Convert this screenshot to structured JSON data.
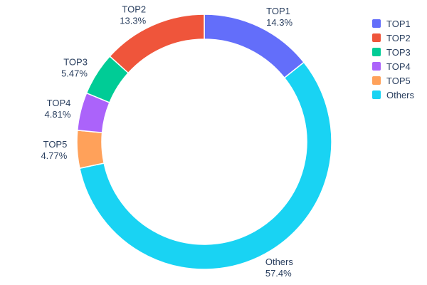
{
  "page": {
    "background": "#ffffff",
    "text_color": "#2a3f5f"
  },
  "chart_data": {
    "type": "pie",
    "subtype": "donut",
    "title": "",
    "hole_ratio": 0.805,
    "labels_position": "outside",
    "slices": [
      {
        "label": "TOP1",
        "value": 14.3,
        "pct_label": "14.3%",
        "color": "#636EFA"
      },
      {
        "label": "TOP2",
        "value": 13.3,
        "pct_label": "13.3%",
        "color": "#EF553B"
      },
      {
        "label": "TOP3",
        "value": 5.47,
        "pct_label": "5.47%",
        "color": "#00CC96"
      },
      {
        "label": "TOP4",
        "value": 4.81,
        "pct_label": "4.81%",
        "color": "#AB63FA"
      },
      {
        "label": "TOP5",
        "value": 4.77,
        "pct_label": "4.77%",
        "color": "#FFA15A"
      },
      {
        "label": "Others",
        "value": 57.4,
        "pct_label": "57.4%",
        "color": "#19D3F3"
      }
    ],
    "clockwise_order_from_top": [
      "TOP1",
      "Others",
      "TOP5",
      "TOP4",
      "TOP3",
      "TOP2"
    ],
    "legend": {
      "position": "right",
      "items": [
        "TOP1",
        "TOP2",
        "TOP3",
        "TOP4",
        "TOP5",
        "Others"
      ]
    }
  }
}
